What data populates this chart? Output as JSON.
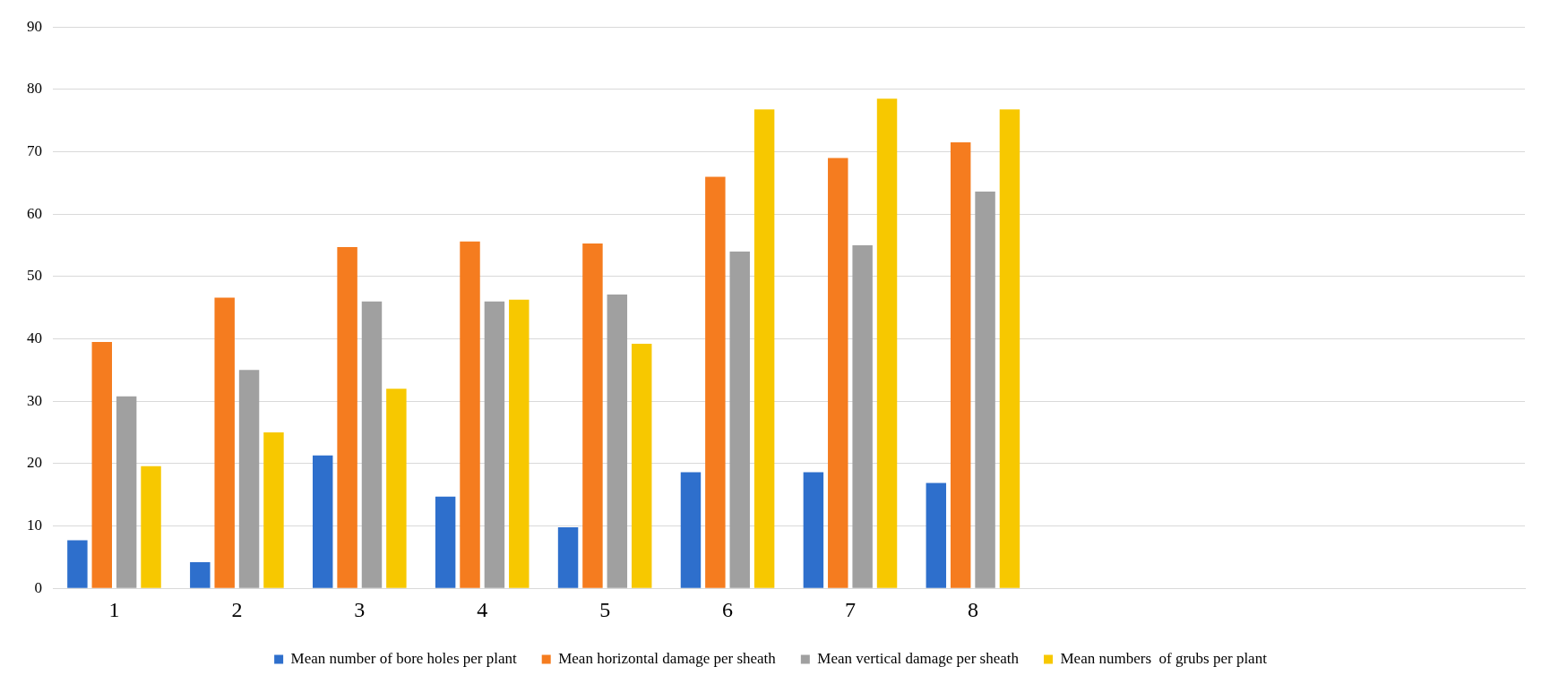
{
  "chart_data": {
    "type": "bar",
    "categories": [
      "1",
      "2",
      "3",
      "4",
      "5",
      "6",
      "7",
      "8",
      null,
      null,
      null,
      null
    ],
    "series": [
      {
        "name": "Mean number of bore holes per plant",
        "color": "#2e6fcc",
        "values": [
          7.7,
          4.2,
          21.3,
          14.7,
          9.8,
          18.6,
          18.6,
          16.9,
          null,
          null,
          null,
          null
        ]
      },
      {
        "name": "Mean horizontal damage per sheath",
        "color": "#f57c1f",
        "values": [
          39.5,
          46.6,
          54.7,
          55.6,
          55.3,
          66,
          69,
          71.5,
          null,
          null,
          null,
          null
        ]
      },
      {
        "name": "Mean vertical damage per sheath",
        "color": "#a0a0a0",
        "values": [
          30.8,
          35,
          46,
          46,
          47.1,
          54,
          55,
          63.6,
          null,
          null,
          null,
          null
        ]
      },
      {
        "name": "Mean numbers  of grubs per plant",
        "color": "#f7c800",
        "values": [
          19.6,
          25,
          32,
          46.3,
          39.2,
          76.8,
          78.5,
          76.8,
          null,
          null,
          null,
          null
        ]
      }
    ],
    "ylim": [
      0,
      90
    ],
    "yticks": [
      0,
      10,
      20,
      30,
      40,
      50,
      60,
      70,
      80,
      90
    ],
    "grid": "y",
    "legend": "bottom"
  }
}
